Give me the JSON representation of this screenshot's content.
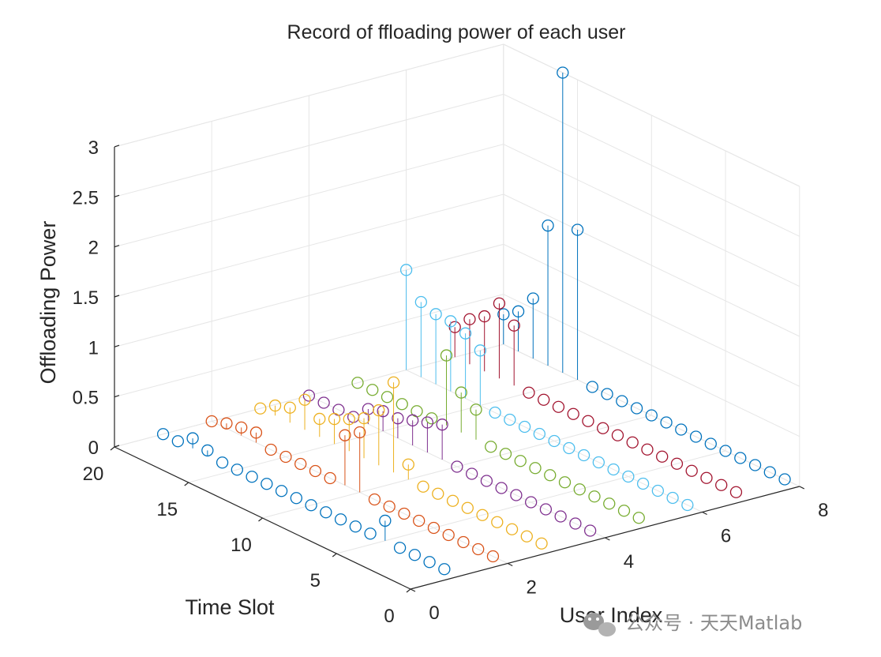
{
  "chart_data": {
    "type": "scatter",
    "subtype": "stem3",
    "title": "Record of ffloading power of each user",
    "xlabel": "User Index",
    "ylabel": "Time Slot",
    "zlabel": "Offloading Power",
    "xlim": [
      0,
      8
    ],
    "ylim": [
      0,
      20
    ],
    "zlim": [
      0,
      3
    ],
    "xticks": [
      "0",
      "2",
      "4",
      "6",
      "8"
    ],
    "yticks": [
      "0",
      "5",
      "10",
      "15",
      "20"
    ],
    "zticks": [
      "0",
      "0.5",
      "1",
      "1.5",
      "2",
      "2.5",
      "3"
    ],
    "grid": true,
    "marker": "open circle",
    "colors": [
      "#0072BD",
      "#D95319",
      "#EDB120",
      "#7E2F8E",
      "#77AC30",
      "#4DBEEE",
      "#A2142F"
    ],
    "series": [
      {
        "user": 1,
        "values": [
          0,
          0,
          0,
          0,
          0.2,
          0,
          0,
          0,
          0,
          0,
          0,
          0,
          0,
          0,
          0,
          0,
          0.05,
          0.1,
          0,
          0
        ]
      },
      {
        "user": 2,
        "values": [
          0,
          0,
          0,
          0,
          0,
          0,
          0,
          0,
          0,
          0.6,
          0.5,
          0,
          0,
          0,
          0,
          0,
          0.1,
          0.08,
          0.05,
          0
        ]
      },
      {
        "user": 3,
        "values": [
          0,
          0,
          0,
          0,
          0,
          0,
          0,
          0,
          0,
          0.15,
          0.9,
          0.55,
          0.4,
          0.32,
          0.25,
          0.18,
          0.3,
          0.15,
          0.1,
          0
        ]
      },
      {
        "user": 4,
        "values": [
          0,
          0,
          0,
          0,
          0,
          0,
          0,
          0,
          0,
          0,
          0.35,
          0.3,
          0.25,
          0.2,
          0.2,
          0.15,
          0,
          0,
          0,
          0
        ]
      },
      {
        "user": 5,
        "values": [
          0,
          0,
          0,
          0,
          0,
          0,
          0,
          0,
          0,
          0,
          0,
          0.3,
          0.4,
          0.7,
          0,
          0,
          0,
          0,
          0,
          0
        ]
      },
      {
        "user": 6,
        "values": [
          0,
          0,
          0,
          0,
          0,
          0,
          0,
          0,
          0,
          0,
          0,
          0,
          0,
          0,
          0.55,
          0.65,
          0.7,
          0.7,
          0.75,
          1.0
        ]
      },
      {
        "user": 7,
        "values": [
          0,
          0,
          0,
          0,
          0,
          0,
          0,
          0,
          0,
          0,
          0,
          0,
          0,
          0,
          0,
          0.6,
          0.75,
          0.55,
          0.45,
          0.3
        ]
      },
      {
        "user": 8,
        "values": [
          0,
          0,
          0,
          0,
          0,
          0,
          0,
          0,
          0,
          0,
          0,
          0,
          0,
          0,
          1.5,
          3.0,
          1.4,
          0.6,
          0.4,
          0.3
        ]
      }
    ]
  },
  "watermark": "公众号 · 天天Matlab"
}
